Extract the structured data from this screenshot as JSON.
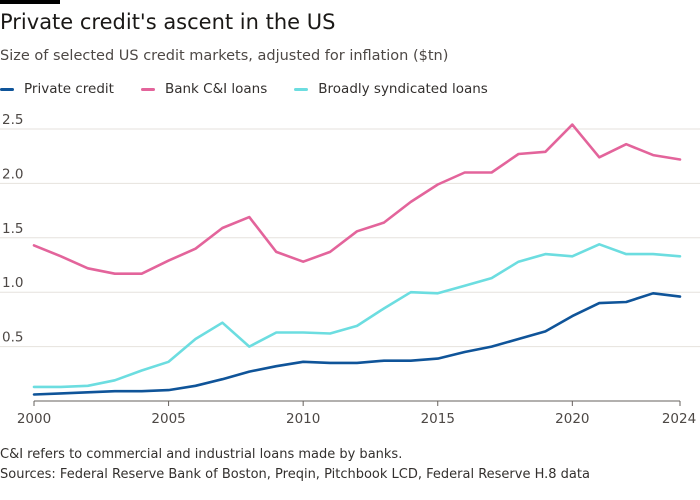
{
  "header": {
    "title": "Private credit's ascent in the US",
    "subtitle": "Size of selected US credit markets, adjusted for inflation ($tn)"
  },
  "footer": {
    "note": "C&I refers to commercial and industrial loans made by banks.",
    "sources": "Sources: Federal Reserve Bank of Boston, Preqin, Pitchbook LCD, Federal Reserve H.8 data"
  },
  "colors": {
    "private_credit": "#0f5499",
    "bank_ci": "#e3649b",
    "broadly_syndicated": "#6cdde0",
    "grid": "#e6e2dd",
    "axis": "#66605c"
  },
  "chart_data": {
    "type": "line",
    "title": "Private credit's ascent in the US",
    "ylabel": "$tn",
    "xlabel": "",
    "xlim": [
      2000,
      2024
    ],
    "ylim": [
      0,
      2.5
    ],
    "yticks": [
      "0.5",
      "1.0",
      "1.5",
      "2.0",
      "2.5"
    ],
    "xticks": [
      "2000",
      "2005",
      "2010",
      "2015",
      "2020",
      "2024"
    ],
    "legend_position": "top-left",
    "x": [
      2000,
      2001,
      2002,
      2003,
      2004,
      2005,
      2006,
      2007,
      2008,
      2009,
      2010,
      2011,
      2012,
      2013,
      2014,
      2015,
      2016,
      2017,
      2018,
      2019,
      2020,
      2021,
      2022,
      2023,
      2024
    ],
    "series": [
      {
        "key": "private_credit",
        "name": "Private credit",
        "values": [
          0.06,
          0.07,
          0.08,
          0.09,
          0.09,
          0.1,
          0.14,
          0.2,
          0.27,
          0.32,
          0.36,
          0.35,
          0.35,
          0.37,
          0.37,
          0.39,
          0.45,
          0.5,
          0.57,
          0.64,
          0.78,
          0.9,
          0.91,
          0.99,
          0.96
        ]
      },
      {
        "key": "bank_ci",
        "name": "Bank C&I loans",
        "values": [
          1.43,
          1.33,
          1.22,
          1.17,
          1.17,
          1.29,
          1.4,
          1.59,
          1.69,
          1.37,
          1.28,
          1.37,
          1.56,
          1.64,
          1.83,
          1.99,
          2.1,
          2.1,
          2.27,
          2.29,
          2.54,
          2.24,
          2.36,
          2.26,
          2.22
        ]
      },
      {
        "key": "broadly_syndicated",
        "name": "Broadly syndicated loans",
        "values": [
          0.13,
          0.13,
          0.14,
          0.19,
          0.28,
          0.36,
          0.57,
          0.72,
          0.5,
          0.63,
          0.63,
          0.62,
          0.69,
          0.85,
          1.0,
          0.99,
          1.06,
          1.13,
          1.28,
          1.35,
          1.33,
          1.44,
          1.35,
          1.35,
          1.33
        ]
      }
    ]
  }
}
